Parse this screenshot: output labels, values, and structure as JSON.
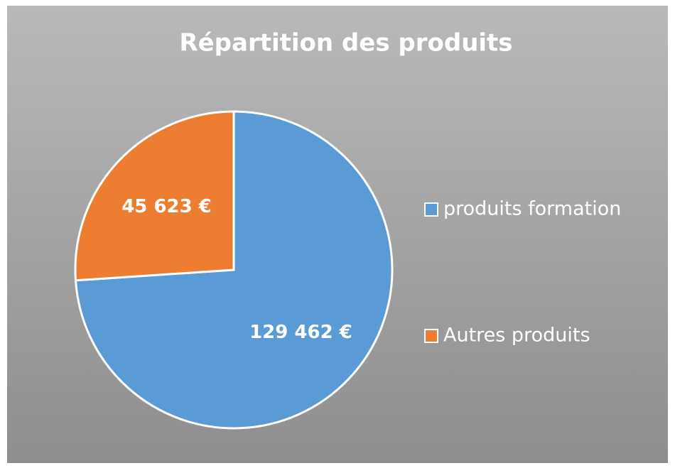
{
  "chart_data": {
    "type": "pie",
    "title": "Répartition des produits",
    "categories": [
      "produits formation",
      "Autres produits"
    ],
    "values": [
      129462,
      45623
    ],
    "value_labels": [
      "129 462 €",
      "45 623 €"
    ],
    "colors": [
      "#5b9bd5",
      "#ed7d31"
    ],
    "legend": "right"
  }
}
